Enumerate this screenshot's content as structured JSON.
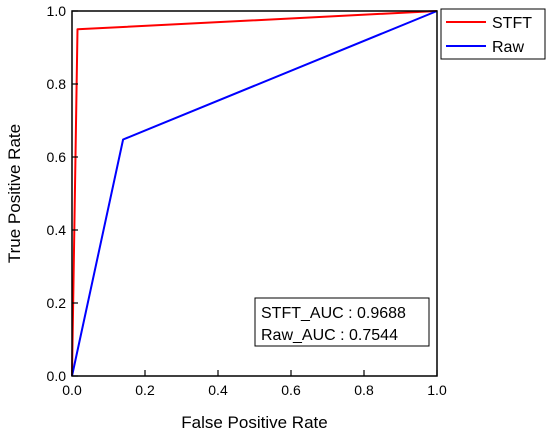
{
  "chart_data": {
    "type": "line",
    "xlabel": "False Positive Rate",
    "ylabel": "True Positive Rate",
    "xlim": [
      0.0,
      1.0
    ],
    "ylim": [
      0.0,
      1.0
    ],
    "x_ticks": [
      "0.0",
      "0.2",
      "0.4",
      "0.6",
      "0.8",
      "1.0"
    ],
    "y_ticks": [
      "0.0",
      "0.2",
      "0.4",
      "0.6",
      "0.8",
      "1.0"
    ],
    "grid": false,
    "legend_position": "outside-top-right",
    "series": [
      {
        "name": "STFT",
        "color": "#ff0000",
        "x": [
          0.0,
          0.015,
          1.0
        ],
        "y": [
          0.0,
          0.95,
          1.0
        ]
      },
      {
        "name": "Raw",
        "color": "#0000ff",
        "x": [
          0.0,
          0.14,
          1.0
        ],
        "y": [
          0.0,
          0.648,
          1.0
        ]
      }
    ],
    "annotations": [
      "STFT_AUC : 0.9688",
      "Raw_AUC : 0.7544"
    ]
  }
}
